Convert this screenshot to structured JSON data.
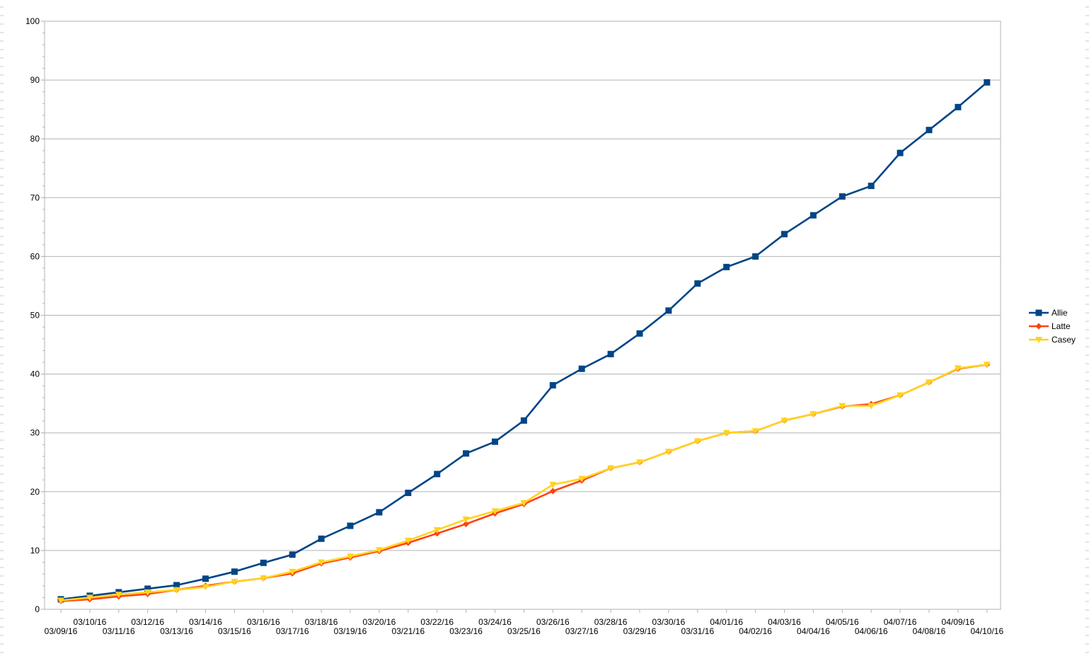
{
  "chart_data": {
    "type": "line",
    "title": "",
    "xlabel": "",
    "ylabel": "",
    "ylim": [
      0,
      100
    ],
    "yticks": [
      0,
      10,
      20,
      30,
      40,
      50,
      60,
      70,
      80,
      90,
      100
    ],
    "grid": "horizontal",
    "legend_position": "right",
    "categories": [
      "03/09/16",
      "03/10/16",
      "03/11/16",
      "03/12/16",
      "03/13/16",
      "03/14/16",
      "03/15/16",
      "03/16/16",
      "03/17/16",
      "03/18/16",
      "03/19/16",
      "03/20/16",
      "03/21/16",
      "03/22/16",
      "03/23/16",
      "03/24/16",
      "03/25/16",
      "03/26/16",
      "03/27/16",
      "03/28/16",
      "03/29/16",
      "03/30/16",
      "03/31/16",
      "04/01/16",
      "04/02/16",
      "04/03/16",
      "04/04/16",
      "04/05/16",
      "04/06/16",
      "04/07/16",
      "04/08/16",
      "04/09/16",
      "04/10/16"
    ],
    "series": [
      {
        "name": "Allie",
        "color": "#004586",
        "marker": "square",
        "values": [
          1.7,
          2.3,
          2.9,
          3.5,
          4.1,
          5.2,
          6.4,
          7.9,
          9.3,
          12.0,
          14.2,
          16.5,
          19.8,
          23.0,
          26.5,
          28.5,
          32.1,
          38.1,
          40.9,
          43.4,
          46.9,
          50.8,
          55.4,
          58.2,
          60.0,
          63.8,
          67.0,
          70.2,
          72.0,
          77.6,
          81.5,
          85.4,
          89.6
        ]
      },
      {
        "name": "Latte",
        "color": "#ff420e",
        "marker": "diamond",
        "values": [
          1.4,
          1.7,
          2.2,
          2.6,
          3.3,
          4.0,
          4.7,
          5.3,
          6.1,
          7.8,
          8.8,
          9.9,
          11.3,
          12.9,
          14.5,
          16.3,
          17.9,
          20.1,
          21.9,
          24.0,
          25.0,
          26.8,
          28.6,
          30.0,
          30.3,
          32.1,
          33.2,
          34.5,
          34.9,
          36.4,
          38.6,
          40.9,
          41.6
        ]
      },
      {
        "name": "Casey",
        "color": "#ffd320",
        "marker": "triangle-down",
        "values": [
          1.5,
          2.0,
          2.5,
          2.9,
          3.3,
          3.8,
          4.7,
          5.3,
          6.4,
          8.0,
          9.0,
          10.1,
          11.7,
          13.5,
          15.3,
          16.7,
          18.1,
          21.2,
          22.2,
          24.0,
          25.0,
          26.8,
          28.6,
          30.0,
          30.3,
          32.1,
          33.2,
          34.6,
          34.6,
          36.4,
          38.6,
          41.0,
          41.6
        ]
      }
    ]
  }
}
